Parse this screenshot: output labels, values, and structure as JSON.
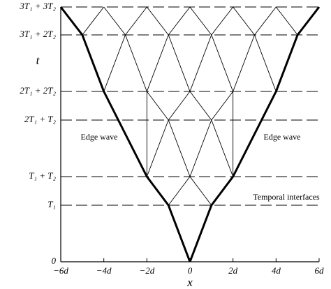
{
  "y_axis": {
    "label": "t",
    "tick_labels": [
      "0",
      "T₁",
      "T₁ + T₂",
      "2T₁ + T₂",
      "2T₁ + 2T₂",
      "3T₁ + 2T₂",
      "3T₁ + 3T₂"
    ]
  },
  "x_axis": {
    "label": "x",
    "tick_labels": [
      "−6d",
      "−4d",
      "−2d",
      "0",
      "2d",
      "4d",
      "6d"
    ]
  },
  "annotations": {
    "edge_wave_left": "Edge wave",
    "edge_wave_right": "Edge wave",
    "interfaces": "Temporal interfaces"
  }
}
